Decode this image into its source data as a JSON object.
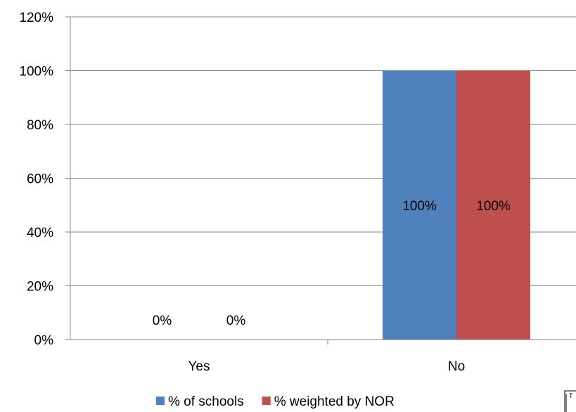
{
  "chart_data": {
    "type": "bar",
    "title": "",
    "xlabel": "",
    "ylabel": "",
    "categories": [
      "Yes",
      "No"
    ],
    "series": [
      {
        "name": "% of schools",
        "values": [
          0,
          100
        ],
        "labels": [
          "0%",
          "100%"
        ],
        "color": "#4F81BD"
      },
      {
        "name": "% weighted by NOR",
        "values": [
          0,
          100
        ],
        "labels": [
          "0%",
          "100%"
        ],
        "color": "#C0504D"
      }
    ],
    "ylim": [
      0,
      120
    ],
    "yticks": [
      0,
      20,
      40,
      60,
      80,
      100,
      120
    ],
    "ytick_labels": [
      "0%",
      "20%",
      "40%",
      "60%",
      "80%",
      "100%",
      "120%"
    ],
    "grid": true,
    "legend_position": "bottom"
  },
  "corner_box": {
    "text": "T"
  },
  "colors": {
    "gridline": "#868686",
    "axis": "#868686",
    "text": "#000000"
  }
}
